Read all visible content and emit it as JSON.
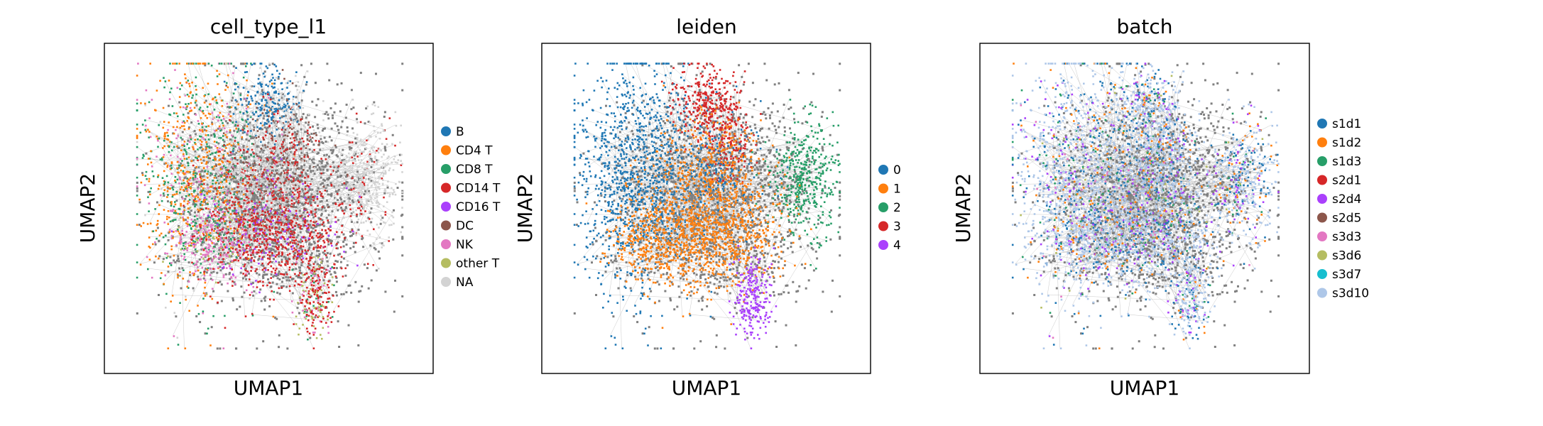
{
  "chart_data": [
    {
      "type": "scatter",
      "title": "cell_type_l1",
      "xlabel": "UMAP1",
      "ylabel": "UMAP2",
      "grid": false,
      "legend_position": "right",
      "series": [
        {
          "name": "B",
          "color": "#1f77b4"
        },
        {
          "name": "CD4 T",
          "color": "#ff7f0e"
        },
        {
          "name": "CD8 T",
          "color": "#279e68"
        },
        {
          "name": "CD14 T",
          "color": "#d62728"
        },
        {
          "name": "CD16 T",
          "color": "#aa40fc"
        },
        {
          "name": "DC",
          "color": "#8c564b"
        },
        {
          "name": "NK",
          "color": "#e377c2"
        },
        {
          "name": "other T",
          "color": "#b5bd61"
        },
        {
          "name": "NA",
          "color": "#d3d3d3"
        }
      ]
    },
    {
      "type": "scatter",
      "title": "leiden",
      "xlabel": "UMAP1",
      "ylabel": "UMAP2",
      "grid": false,
      "legend_position": "right",
      "series": [
        {
          "name": "0",
          "color": "#1f77b4"
        },
        {
          "name": "1",
          "color": "#ff7f0e"
        },
        {
          "name": "2",
          "color": "#279e68"
        },
        {
          "name": "3",
          "color": "#d62728"
        },
        {
          "name": "4",
          "color": "#aa40fc"
        }
      ]
    },
    {
      "type": "scatter",
      "title": "batch",
      "xlabel": "UMAP1",
      "ylabel": "UMAP2",
      "grid": false,
      "legend_position": "right",
      "series": [
        {
          "name": "s1d1",
          "color": "#1f77b4"
        },
        {
          "name": "s1d2",
          "color": "#ff7f0e"
        },
        {
          "name": "s1d3",
          "color": "#279e68"
        },
        {
          "name": "s2d1",
          "color": "#d62728"
        },
        {
          "name": "s2d4",
          "color": "#aa40fc"
        },
        {
          "name": "s2d5",
          "color": "#8c564b"
        },
        {
          "name": "s3d3",
          "color": "#e377c2"
        },
        {
          "name": "s3d6",
          "color": "#b5bd61"
        },
        {
          "name": "s3d7",
          "color": "#17becf"
        },
        {
          "name": "s3d10",
          "color": "#aec7e8"
        }
      ]
    }
  ]
}
